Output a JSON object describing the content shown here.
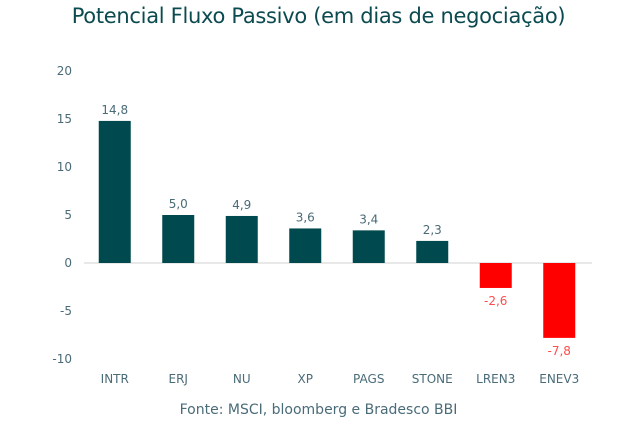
{
  "chart_data": {
    "type": "bar",
    "title": "Potencial Fluxo Passivo (em dias de negociação)",
    "source": "Fonte: MSCI, bloomberg e Bradesco BBI",
    "categories": [
      "INTR",
      "ERJ",
      "NU",
      "XP",
      "PAGS",
      "STONE",
      "LREN3",
      "ENEV3"
    ],
    "values": [
      14.8,
      5.0,
      4.9,
      3.6,
      3.4,
      2.3,
      -2.6,
      -7.8
    ],
    "value_labels": [
      "14,8",
      "5,0",
      "4,9",
      "3,6",
      "3,4",
      "2,3",
      "-2,6",
      "-7,8"
    ],
    "xlabel": "",
    "ylabel": "",
    "ylim": [
      -10,
      20
    ],
    "yticks": [
      20,
      15,
      10,
      5,
      0,
      -5,
      -10
    ],
    "ytick_labels": [
      "20",
      "15",
      "10",
      "5",
      "0",
      "-5",
      "-10"
    ],
    "grid": false,
    "colors": {
      "positive": "#004a4f",
      "negative": "#ff0000",
      "positive_label": "#4a6b78",
      "negative_label": "#ff4d4d",
      "title": "#0b4a4f"
    }
  }
}
